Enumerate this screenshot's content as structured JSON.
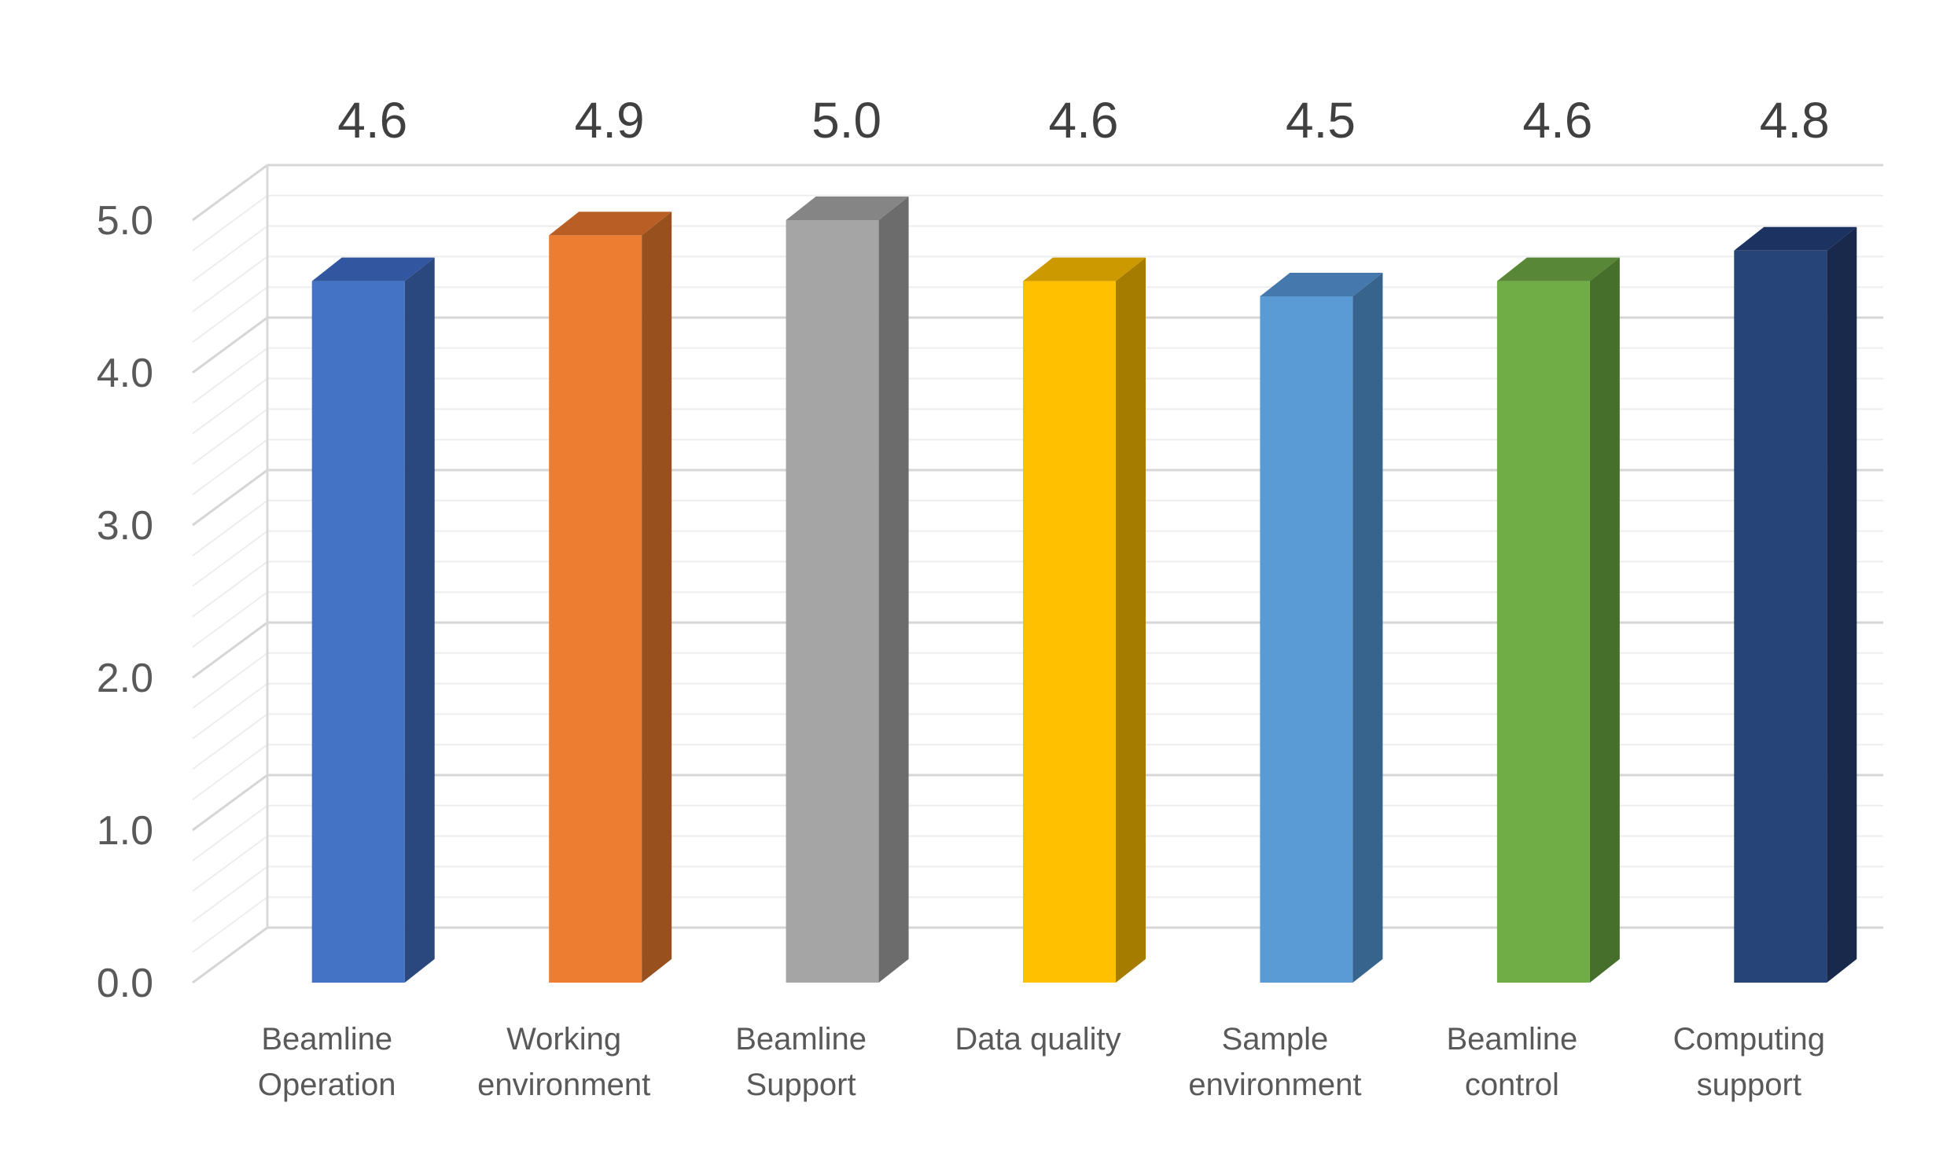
{
  "chart_data": {
    "type": "bar",
    "style": "3d-column",
    "categories": [
      [
        "Beamline",
        "Operation"
      ],
      [
        "Working",
        "environment"
      ],
      [
        "Beamline",
        "Support"
      ],
      [
        "Data quality"
      ],
      [
        "Sample",
        "environment"
      ],
      [
        "Beamline",
        "control"
      ],
      [
        "Computing",
        "support"
      ]
    ],
    "values": [
      4.6,
      4.9,
      5.0,
      4.6,
      4.5,
      4.6,
      4.8
    ],
    "data_labels": [
      "4.6",
      "4.9",
      "5.0",
      "4.6",
      "4.5",
      "4.6",
      "4.8"
    ],
    "ylim": [
      0,
      5.0
    ],
    "yticks": [
      "0.0",
      "1.0",
      "2.0",
      "3.0",
      "4.0",
      "5.0"
    ],
    "minor_grid_step": 0.2,
    "grid": true,
    "legend": "none",
    "colors": {
      "front": [
        "#4472C4",
        "#ED7D31",
        "#A5A5A5",
        "#FFC000",
        "#5B9BD5",
        "#70AD47",
        "#264478"
      ],
      "side": [
        "#2A477E",
        "#97501E",
        "#6C6C6C",
        "#A67C00",
        "#36648D",
        "#476F2C",
        "#18294C"
      ],
      "top": [
        "#3257A0",
        "#B95F25",
        "#858585",
        "#CC9A00",
        "#4578AC",
        "#578737",
        "#1C3260"
      ]
    }
  }
}
